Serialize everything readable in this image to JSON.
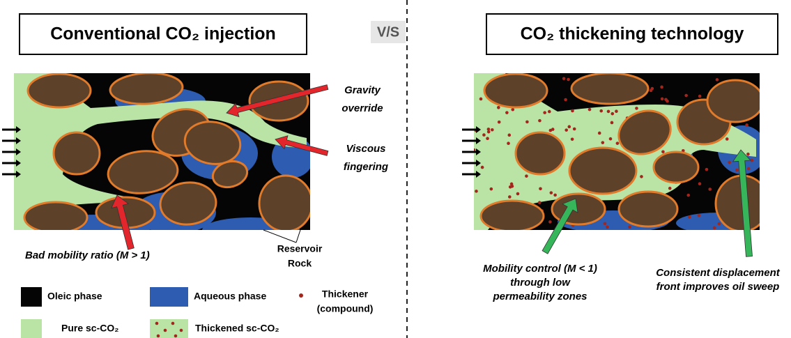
{
  "left": {
    "title": "Conventional CO₂ injection",
    "annotations": [
      {
        "lines": [
          "Gravity",
          "override"
        ]
      },
      {
        "lines": [
          "Viscous",
          "fingering"
        ]
      },
      {
        "lines": [
          "Bad mobility ratio (M > 1)"
        ]
      },
      {
        "lines": [
          "Reservoir",
          "Rock"
        ]
      }
    ]
  },
  "separator": "V/S",
  "right": {
    "title": "CO₂ thickening technology",
    "annotations": [
      {
        "lines": [
          "Mobility control (M < 1)",
          "through low",
          "permeability zones"
        ]
      },
      {
        "lines": [
          "Consistent displacement",
          "front improves oil sweep"
        ]
      }
    ]
  },
  "legend": [
    {
      "lines": [
        "Oleic phase"
      ]
    },
    {
      "lines": [
        "Aqueous phase"
      ]
    },
    {
      "lines": [
        "Thickener",
        "(compound)"
      ]
    },
    {
      "lines": [
        "Pure sc-CO₂"
      ]
    },
    {
      "lines": [
        "Thickened sc-CO₂"
      ]
    }
  ]
}
